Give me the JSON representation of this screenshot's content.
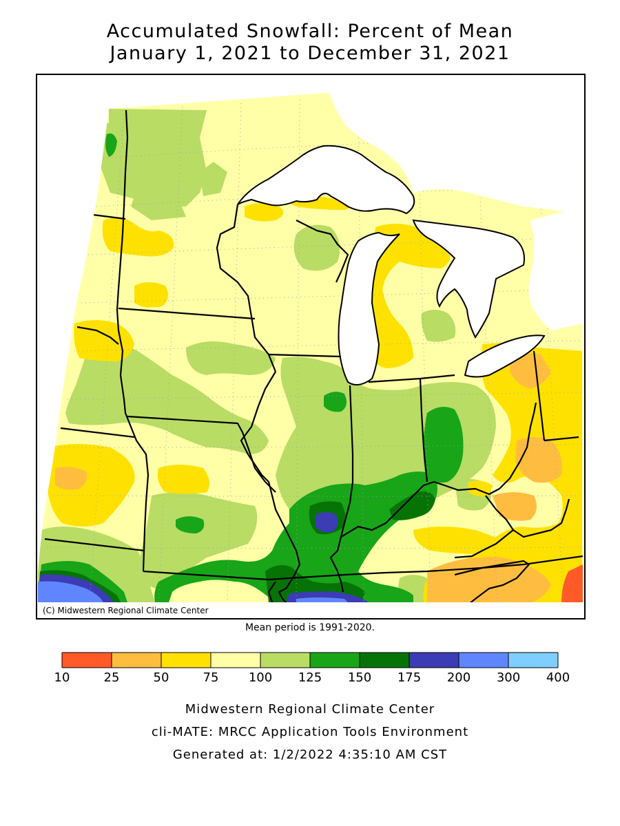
{
  "title": {
    "line1": "Accumulated Snowfall: Percent of Mean",
    "line2": "January 1, 2021 to December 31, 2021"
  },
  "map": {
    "copyright": "(C) Midwestern Regional Climate Center",
    "mean_period": "Mean period is 1991-2020."
  },
  "legend": {
    "ticks": [
      "10",
      "25",
      "50",
      "75",
      "100",
      "125",
      "150",
      "175",
      "200",
      "300",
      "400"
    ],
    "colors": [
      "#ff5a27",
      "#ffbd40",
      "#ffe100",
      "#ffffa8",
      "#b9dc64",
      "#18a518",
      "#067306",
      "#3c3cb4",
      "#5f86ff",
      "#7ecfff"
    ]
  },
  "colors": {
    "water": "#ffffff",
    "border": "#000000"
  },
  "footer": {
    "line1": "Midwestern Regional Climate Center",
    "line2": "cli-MATE: MRCC Application Tools Environment",
    "line3": "Generated at: 1/2/2022 4:35:10 AM CST"
  }
}
